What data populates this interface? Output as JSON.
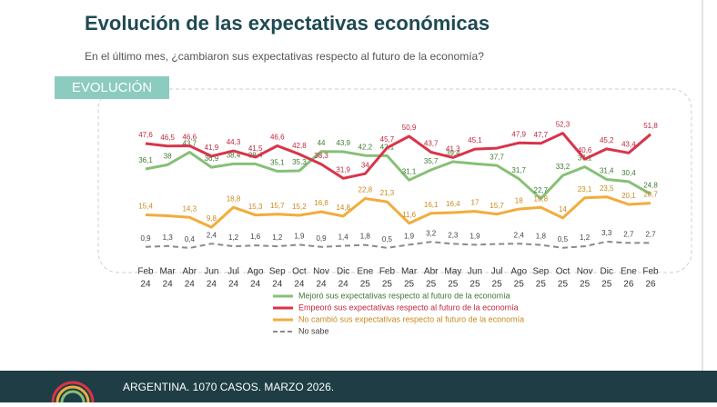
{
  "header": {
    "title": "Evolución de las expectativas económicas",
    "subtitle": "En el último mes, ¿cambiaron sus expectativas respecto al futuro de la economía?",
    "section": "EVOLUCIÓN"
  },
  "footer": "ARGENTINA. 1070 CASOS. MARZO 2026.",
  "chart_data": {
    "type": "line",
    "categories": [
      [
        "Feb",
        "24"
      ],
      [
        "Mar",
        "24"
      ],
      [
        "Abr",
        "24"
      ],
      [
        "Jun",
        "24"
      ],
      [
        "Jul",
        "24"
      ],
      [
        "Ago",
        "24"
      ],
      [
        "Sep",
        "24"
      ],
      [
        "Oct",
        "24"
      ],
      [
        "Nov",
        "24"
      ],
      [
        "Dic",
        "24"
      ],
      [
        "Ene",
        "25"
      ],
      [
        "Feb",
        "25"
      ],
      [
        "Mar",
        "25"
      ],
      [
        "Abr",
        "25"
      ],
      [
        "May",
        "25"
      ],
      [
        "Jun",
        "25"
      ],
      [
        "Jul",
        "25"
      ],
      [
        "Ago",
        "25"
      ],
      [
        "Sep",
        "25"
      ],
      [
        "Oct",
        "25"
      ],
      [
        "Nov",
        "25"
      ],
      [
        "Dic",
        "25"
      ],
      [
        "Ene",
        "26"
      ],
      [
        "Feb",
        "26"
      ]
    ],
    "ylim": [
      0,
      55
    ],
    "series": [
      {
        "name": "Mejoró sus expectativas respecto al futuro de la economía",
        "color": "#86c077",
        "label_color": "#3f7a34",
        "dashed": false,
        "values": [
          36.1,
          38,
          43.7,
          36.9,
          38.4,
          38.4,
          35.1,
          35.3,
          44,
          43.9,
          42.2,
          42.1,
          31.1,
          35.7,
          39.4,
          38.5,
          37.7,
          31.7,
          22.7,
          33.2,
          37.1,
          31.4,
          30.4,
          24.8
        ],
        "value_labels": [
          "36,1",
          "38",
          "43,7",
          "36,9",
          "38,4",
          "38,4",
          "35,1",
          "35,3",
          "44",
          "43,9",
          "42,2",
          "42,1",
          "31,1",
          "35,7",
          "39,4",
          null,
          "37,7",
          "31,7",
          "22,7",
          "33,2",
          "37,1",
          "31,4",
          "30,4",
          "24,8"
        ]
      },
      {
        "name": "Empeoró sus expectativas respecto al futuro de la economía",
        "color": "#d9344a",
        "label_color": "#c0283d",
        "dashed": false,
        "values": [
          47.6,
          46.5,
          46.6,
          41.9,
          44.3,
          41.5,
          46.6,
          42.8,
          38.3,
          31.9,
          34,
          45.7,
          50.9,
          43.7,
          41.3,
          45.1,
          45.5,
          47.9,
          47.7,
          52.3,
          40.6,
          45.2,
          43.4,
          51.8
        ],
        "value_labels": [
          "47,6",
          "46,5",
          "46,6",
          "41,9",
          "44,3",
          "41,5",
          "46,6",
          "42,8",
          "38,3",
          "31,9",
          "34",
          "45,7",
          "50,9",
          "43,7",
          "41,3",
          "45,1",
          null,
          "47,9",
          "47,7",
          "52,3",
          "40,6",
          "45,2",
          "43,4",
          "51,8"
        ]
      },
      {
        "name": "No cambió sus expectativas respecto al futuro de la economía",
        "color": "#f2ac3c",
        "label_color": "#c98a1f",
        "dashed": false,
        "values": [
          15.4,
          15,
          14.3,
          9.8,
          18.8,
          15.3,
          15.7,
          15.2,
          16.8,
          14.8,
          22.8,
          21.3,
          11.6,
          16.1,
          16.4,
          17,
          15.7,
          18,
          18.8,
          14,
          23.1,
          23.5,
          20.1,
          20.7
        ],
        "value_labels": [
          "15,4",
          null,
          "14,3",
          "9,8",
          "18,8",
          "15,3",
          "15,7",
          "15,2",
          "16,8",
          "14,8",
          "22,8",
          "21,3",
          "11,6",
          "16,1",
          "16,4",
          "17",
          "15,7",
          "18",
          "18,8",
          "14",
          "23,1",
          "23,5",
          "20,1",
          "20,7"
        ]
      },
      {
        "name": "No sabe",
        "color": "#8a8a8a",
        "label_color": "#444444",
        "dashed": true,
        "values": [
          0.9,
          1.3,
          0.4,
          2.4,
          1.2,
          1.6,
          1.2,
          1.9,
          0.9,
          1.4,
          1.8,
          0.5,
          1.9,
          3.2,
          2.3,
          1.9,
          2.2,
          2.4,
          1.8,
          0.5,
          1.2,
          3.3,
          2.7,
          2.7
        ],
        "value_labels": [
          "0,9",
          "1,3",
          "0,4",
          "2,4",
          "1,2",
          "1,6",
          "1,2",
          "1,9",
          "0,9",
          "1,4",
          "1,8",
          "0,5",
          "1,9",
          "3,2",
          "2,3",
          "1,9",
          null,
          "2,4",
          "1,8",
          "0,5",
          "1,2",
          "3,3",
          "2,7",
          "2,7"
        ]
      }
    ]
  }
}
